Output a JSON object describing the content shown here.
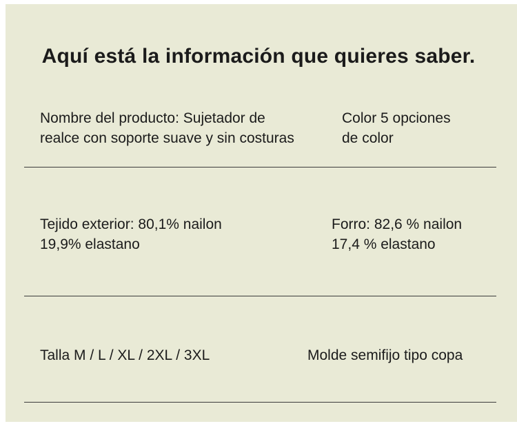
{
  "heading": "Aquí está la información que quieres saber.",
  "rows": [
    {
      "left": [
        "Nombre del producto: Sujetador de",
        "realce con soporte suave y sin costuras"
      ],
      "right": [
        "Color 5 opciones",
        "de color"
      ]
    },
    {
      "left": [
        "Tejido exterior: 80,1% nailon",
        "19,9% elastano"
      ],
      "right": [
        "Forro: 82,6 % nailon",
        "17,4 % elastano"
      ]
    },
    {
      "left": [
        "Talla M / L / XL / 2XL / 3XL"
      ],
      "right": [
        "Molde semifijo tipo copa"
      ]
    }
  ],
  "colors": {
    "background": "#e9ead6",
    "text": "#1b1b1b",
    "divider": "#3a3a3a"
  }
}
